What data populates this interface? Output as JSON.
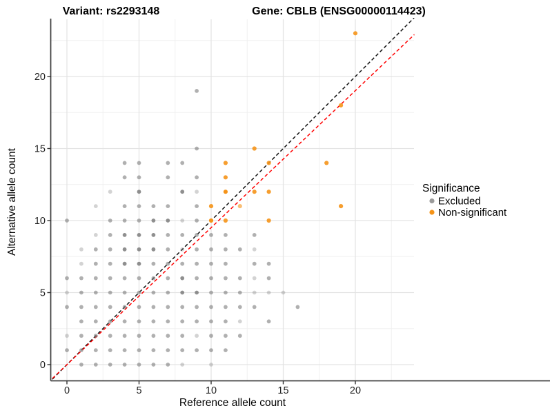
{
  "header": {
    "variant_title": "Variant: rs2293148",
    "gene_title": "Gene: CBLB (ENSG00000114423)"
  },
  "chart_data": {
    "type": "scatter",
    "xlabel": "Reference allele count",
    "ylabel": "Alternative allele count",
    "x_ticks": [
      0,
      5,
      10,
      15,
      20
    ],
    "x_minor_ticks": [
      2.5,
      7.5,
      12.5,
      17.5,
      22.5
    ],
    "y_ticks": [
      0,
      5,
      10,
      15,
      20
    ],
    "y_minor_ticks": [
      2.5,
      7.5,
      12.5,
      17.5,
      22.5
    ],
    "xlim": [
      -1.3,
      24.5
    ],
    "ylim": [
      -1.3,
      24.6
    ],
    "grid": "major+minor",
    "legend": {
      "title": "Significance",
      "position": "right",
      "items": [
        {
          "label": "Excluded",
          "color": "#9B9B9B"
        },
        {
          "label": "Non-significant",
          "color": "#F59318"
        }
      ]
    },
    "reference_lines": [
      {
        "name": "identity-line",
        "slope": 1.0,
        "intercept": 0,
        "color": "#111111",
        "style": "dashed"
      },
      {
        "name": "ratio-line",
        "slope": 0.951,
        "intercept": 0,
        "color": "#FF0000",
        "style": "dashed"
      }
    ],
    "series": [
      {
        "name": "Excluded",
        "color": "#7F7F7F",
        "points": [
          [
            1,
            0,
            2
          ],
          [
            2,
            0,
            2
          ],
          [
            3,
            0,
            2
          ],
          [
            4,
            0,
            2
          ],
          [
            5,
            0,
            2
          ],
          [
            6,
            0,
            2
          ],
          [
            7,
            0,
            2
          ],
          [
            8,
            0,
            1
          ],
          [
            10,
            0,
            1
          ],
          [
            0,
            1,
            2
          ],
          [
            1,
            1,
            2
          ],
          [
            2,
            1,
            2
          ],
          [
            3,
            1,
            2
          ],
          [
            4,
            1,
            2
          ],
          [
            5,
            1,
            2
          ],
          [
            6,
            1,
            2
          ],
          [
            7,
            1,
            2
          ],
          [
            8,
            1,
            2
          ],
          [
            9,
            1,
            2
          ],
          [
            10,
            1,
            2
          ],
          [
            11,
            1,
            2
          ],
          [
            0,
            2,
            1
          ],
          [
            1,
            2,
            2
          ],
          [
            2,
            2,
            2
          ],
          [
            3,
            2,
            2
          ],
          [
            4,
            2,
            2
          ],
          [
            5,
            2,
            2
          ],
          [
            6,
            2,
            2
          ],
          [
            7,
            2,
            2
          ],
          [
            8,
            2,
            2
          ],
          [
            9,
            2,
            1
          ],
          [
            10,
            2,
            2
          ],
          [
            11,
            2,
            2
          ],
          [
            12,
            2,
            2
          ],
          [
            1,
            3,
            2
          ],
          [
            2,
            3,
            2
          ],
          [
            3,
            3,
            2
          ],
          [
            4,
            3,
            2
          ],
          [
            5,
            3,
            2
          ],
          [
            6,
            3,
            2
          ],
          [
            7,
            3,
            2
          ],
          [
            8,
            3,
            2
          ],
          [
            9,
            3,
            2
          ],
          [
            10,
            3,
            2
          ],
          [
            11,
            3,
            2
          ],
          [
            12,
            3,
            1
          ],
          [
            14,
            3,
            2
          ],
          [
            0,
            4,
            2
          ],
          [
            1,
            4,
            2
          ],
          [
            2,
            4,
            2
          ],
          [
            3,
            4,
            2
          ],
          [
            4,
            4,
            2
          ],
          [
            5,
            4,
            2
          ],
          [
            6,
            4,
            2
          ],
          [
            7,
            4,
            2
          ],
          [
            8,
            4,
            2
          ],
          [
            9,
            4,
            2
          ],
          [
            10,
            4,
            2
          ],
          [
            11,
            4,
            2
          ],
          [
            12,
            4,
            2
          ],
          [
            13,
            4,
            2
          ],
          [
            16,
            4,
            2
          ],
          [
            0,
            5,
            1
          ],
          [
            1,
            5,
            2
          ],
          [
            2,
            5,
            2
          ],
          [
            3,
            5,
            2
          ],
          [
            4,
            5,
            2
          ],
          [
            5,
            5,
            2
          ],
          [
            6,
            5,
            2
          ],
          [
            7,
            5,
            2
          ],
          [
            8,
            5,
            3
          ],
          [
            9,
            5,
            3
          ],
          [
            10,
            5,
            2
          ],
          [
            11,
            5,
            2
          ],
          [
            12,
            5,
            2
          ],
          [
            13,
            5,
            1
          ],
          [
            14,
            5,
            1
          ],
          [
            15,
            5,
            1
          ],
          [
            0,
            6,
            2
          ],
          [
            1,
            6,
            2
          ],
          [
            2,
            6,
            2
          ],
          [
            3,
            6,
            2
          ],
          [
            4,
            6,
            2
          ],
          [
            5,
            6,
            2
          ],
          [
            6,
            6,
            2
          ],
          [
            7,
            6,
            2
          ],
          [
            8,
            6,
            3
          ],
          [
            9,
            6,
            2
          ],
          [
            10,
            6,
            2
          ],
          [
            11,
            6,
            2
          ],
          [
            12,
            6,
            2
          ],
          [
            13,
            6,
            1
          ],
          [
            14,
            6,
            2
          ],
          [
            1,
            7,
            1
          ],
          [
            2,
            7,
            2
          ],
          [
            3,
            7,
            2
          ],
          [
            4,
            7,
            3
          ],
          [
            5,
            7,
            3
          ],
          [
            6,
            7,
            2
          ],
          [
            7,
            7,
            2
          ],
          [
            8,
            7,
            2
          ],
          [
            9,
            7,
            2
          ],
          [
            10,
            7,
            2
          ],
          [
            11,
            7,
            2
          ],
          [
            13,
            7,
            2
          ],
          [
            14,
            7,
            2
          ],
          [
            1,
            8,
            1
          ],
          [
            2,
            8,
            2
          ],
          [
            3,
            8,
            2
          ],
          [
            4,
            8,
            3
          ],
          [
            5,
            8,
            3
          ],
          [
            6,
            8,
            3
          ],
          [
            7,
            8,
            2
          ],
          [
            8,
            8,
            1
          ],
          [
            9,
            8,
            2
          ],
          [
            10,
            8,
            2
          ],
          [
            11,
            8,
            2
          ],
          [
            12,
            8,
            2
          ],
          [
            13,
            8,
            1
          ],
          [
            2,
            9,
            1
          ],
          [
            3,
            9,
            2
          ],
          [
            4,
            9,
            3
          ],
          [
            5,
            9,
            3
          ],
          [
            6,
            9,
            3
          ],
          [
            7,
            9,
            2
          ],
          [
            8,
            9,
            2
          ],
          [
            9,
            9,
            2
          ],
          [
            10,
            9,
            2
          ],
          [
            11,
            9,
            2
          ],
          [
            13,
            9,
            2
          ],
          [
            0,
            10,
            2
          ],
          [
            3,
            10,
            2
          ],
          [
            4,
            10,
            2
          ],
          [
            5,
            10,
            2
          ],
          [
            6,
            10,
            3
          ],
          [
            7,
            10,
            3
          ],
          [
            8,
            10,
            1
          ],
          [
            9,
            10,
            2
          ],
          [
            2,
            11,
            1
          ],
          [
            4,
            11,
            2
          ],
          [
            5,
            11,
            2
          ],
          [
            6,
            11,
            2
          ],
          [
            7,
            11,
            2
          ],
          [
            9,
            11,
            2
          ],
          [
            3,
            12,
            1
          ],
          [
            5,
            12,
            3
          ],
          [
            8,
            12,
            3
          ],
          [
            9,
            12,
            1
          ],
          [
            4,
            13,
            2
          ],
          [
            5,
            13,
            2
          ],
          [
            7,
            13,
            2
          ],
          [
            9,
            13,
            2
          ],
          [
            4,
            14,
            2
          ],
          [
            5,
            14,
            2
          ],
          [
            7,
            14,
            2
          ],
          [
            8,
            14,
            2
          ],
          [
            9,
            15,
            2
          ],
          [
            9,
            19,
            2
          ]
        ]
      },
      {
        "name": "Non-significant",
        "color": "#F59318",
        "points": [
          [
            10,
            10,
            3
          ],
          [
            11,
            10,
            2
          ],
          [
            14,
            10,
            2
          ],
          [
            10,
            11,
            2
          ],
          [
            12,
            11,
            1
          ],
          [
            19,
            11,
            2
          ],
          [
            11,
            12,
            3
          ],
          [
            13,
            12,
            2
          ],
          [
            14,
            12,
            2
          ],
          [
            11,
            13,
            2
          ],
          [
            11,
            14,
            2
          ],
          [
            14,
            14,
            2
          ],
          [
            18,
            14,
            2
          ],
          [
            13,
            15,
            2
          ],
          [
            19,
            18,
            2
          ],
          [
            20,
            23,
            2
          ]
        ]
      }
    ]
  }
}
